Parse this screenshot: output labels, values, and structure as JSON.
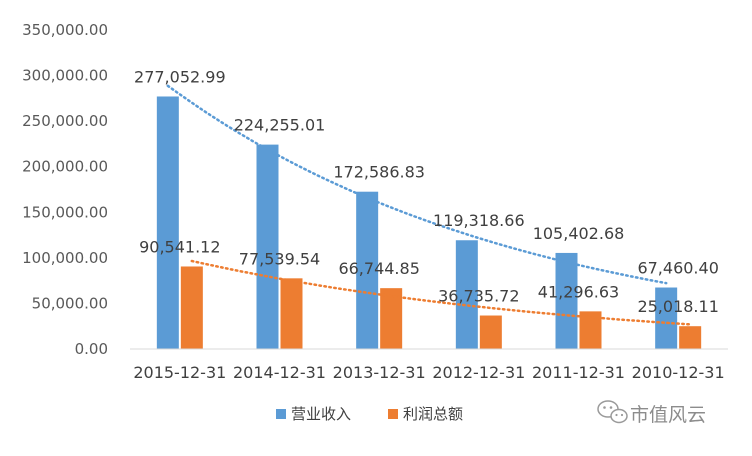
{
  "chart_data": {
    "type": "bar",
    "categories": [
      "2015-12-31",
      "2014-12-31",
      "2013-12-31",
      "2012-12-31",
      "2011-12-31",
      "2010-12-31"
    ],
    "series": [
      {
        "name": "营业收入",
        "color": "#5b9bd5",
        "values": [
          277052.99,
          224255.01,
          172586.83,
          119318.66,
          105402.68,
          67460.4
        ],
        "labels": [
          "277,052.99",
          "224,255.01",
          "172,586.83",
          "119,318.66",
          "105,402.68",
          "67,460.40"
        ],
        "trendline": {
          "type": "exponential",
          "style": "dotted",
          "color": "#5b9bd5"
        }
      },
      {
        "name": "利润总额",
        "color": "#ed7d31",
        "values": [
          90541.12,
          77539.54,
          66744.85,
          36735.72,
          41296.63,
          25018.11
        ],
        "labels": [
          "90,541.12",
          "77,539.54",
          "66,744.85",
          "36,735.72",
          "41,296.63",
          "25,018.11"
        ],
        "trendline": {
          "type": "exponential",
          "style": "dotted",
          "color": "#ed7d31"
        }
      }
    ],
    "ylim": [
      0,
      350000
    ],
    "yticks": [
      0,
      50000,
      100000,
      150000,
      200000,
      250000,
      300000,
      350000
    ],
    "ytick_labels": [
      "0.00",
      "50,000.00",
      "100,000.00",
      "150,000.00",
      "200,000.00",
      "250,000.00",
      "300,000.00",
      "350,000.00"
    ],
    "grid": false,
    "legend_position": "bottom"
  },
  "watermark": {
    "text": "市值风云",
    "icon": "wechat-icon"
  }
}
